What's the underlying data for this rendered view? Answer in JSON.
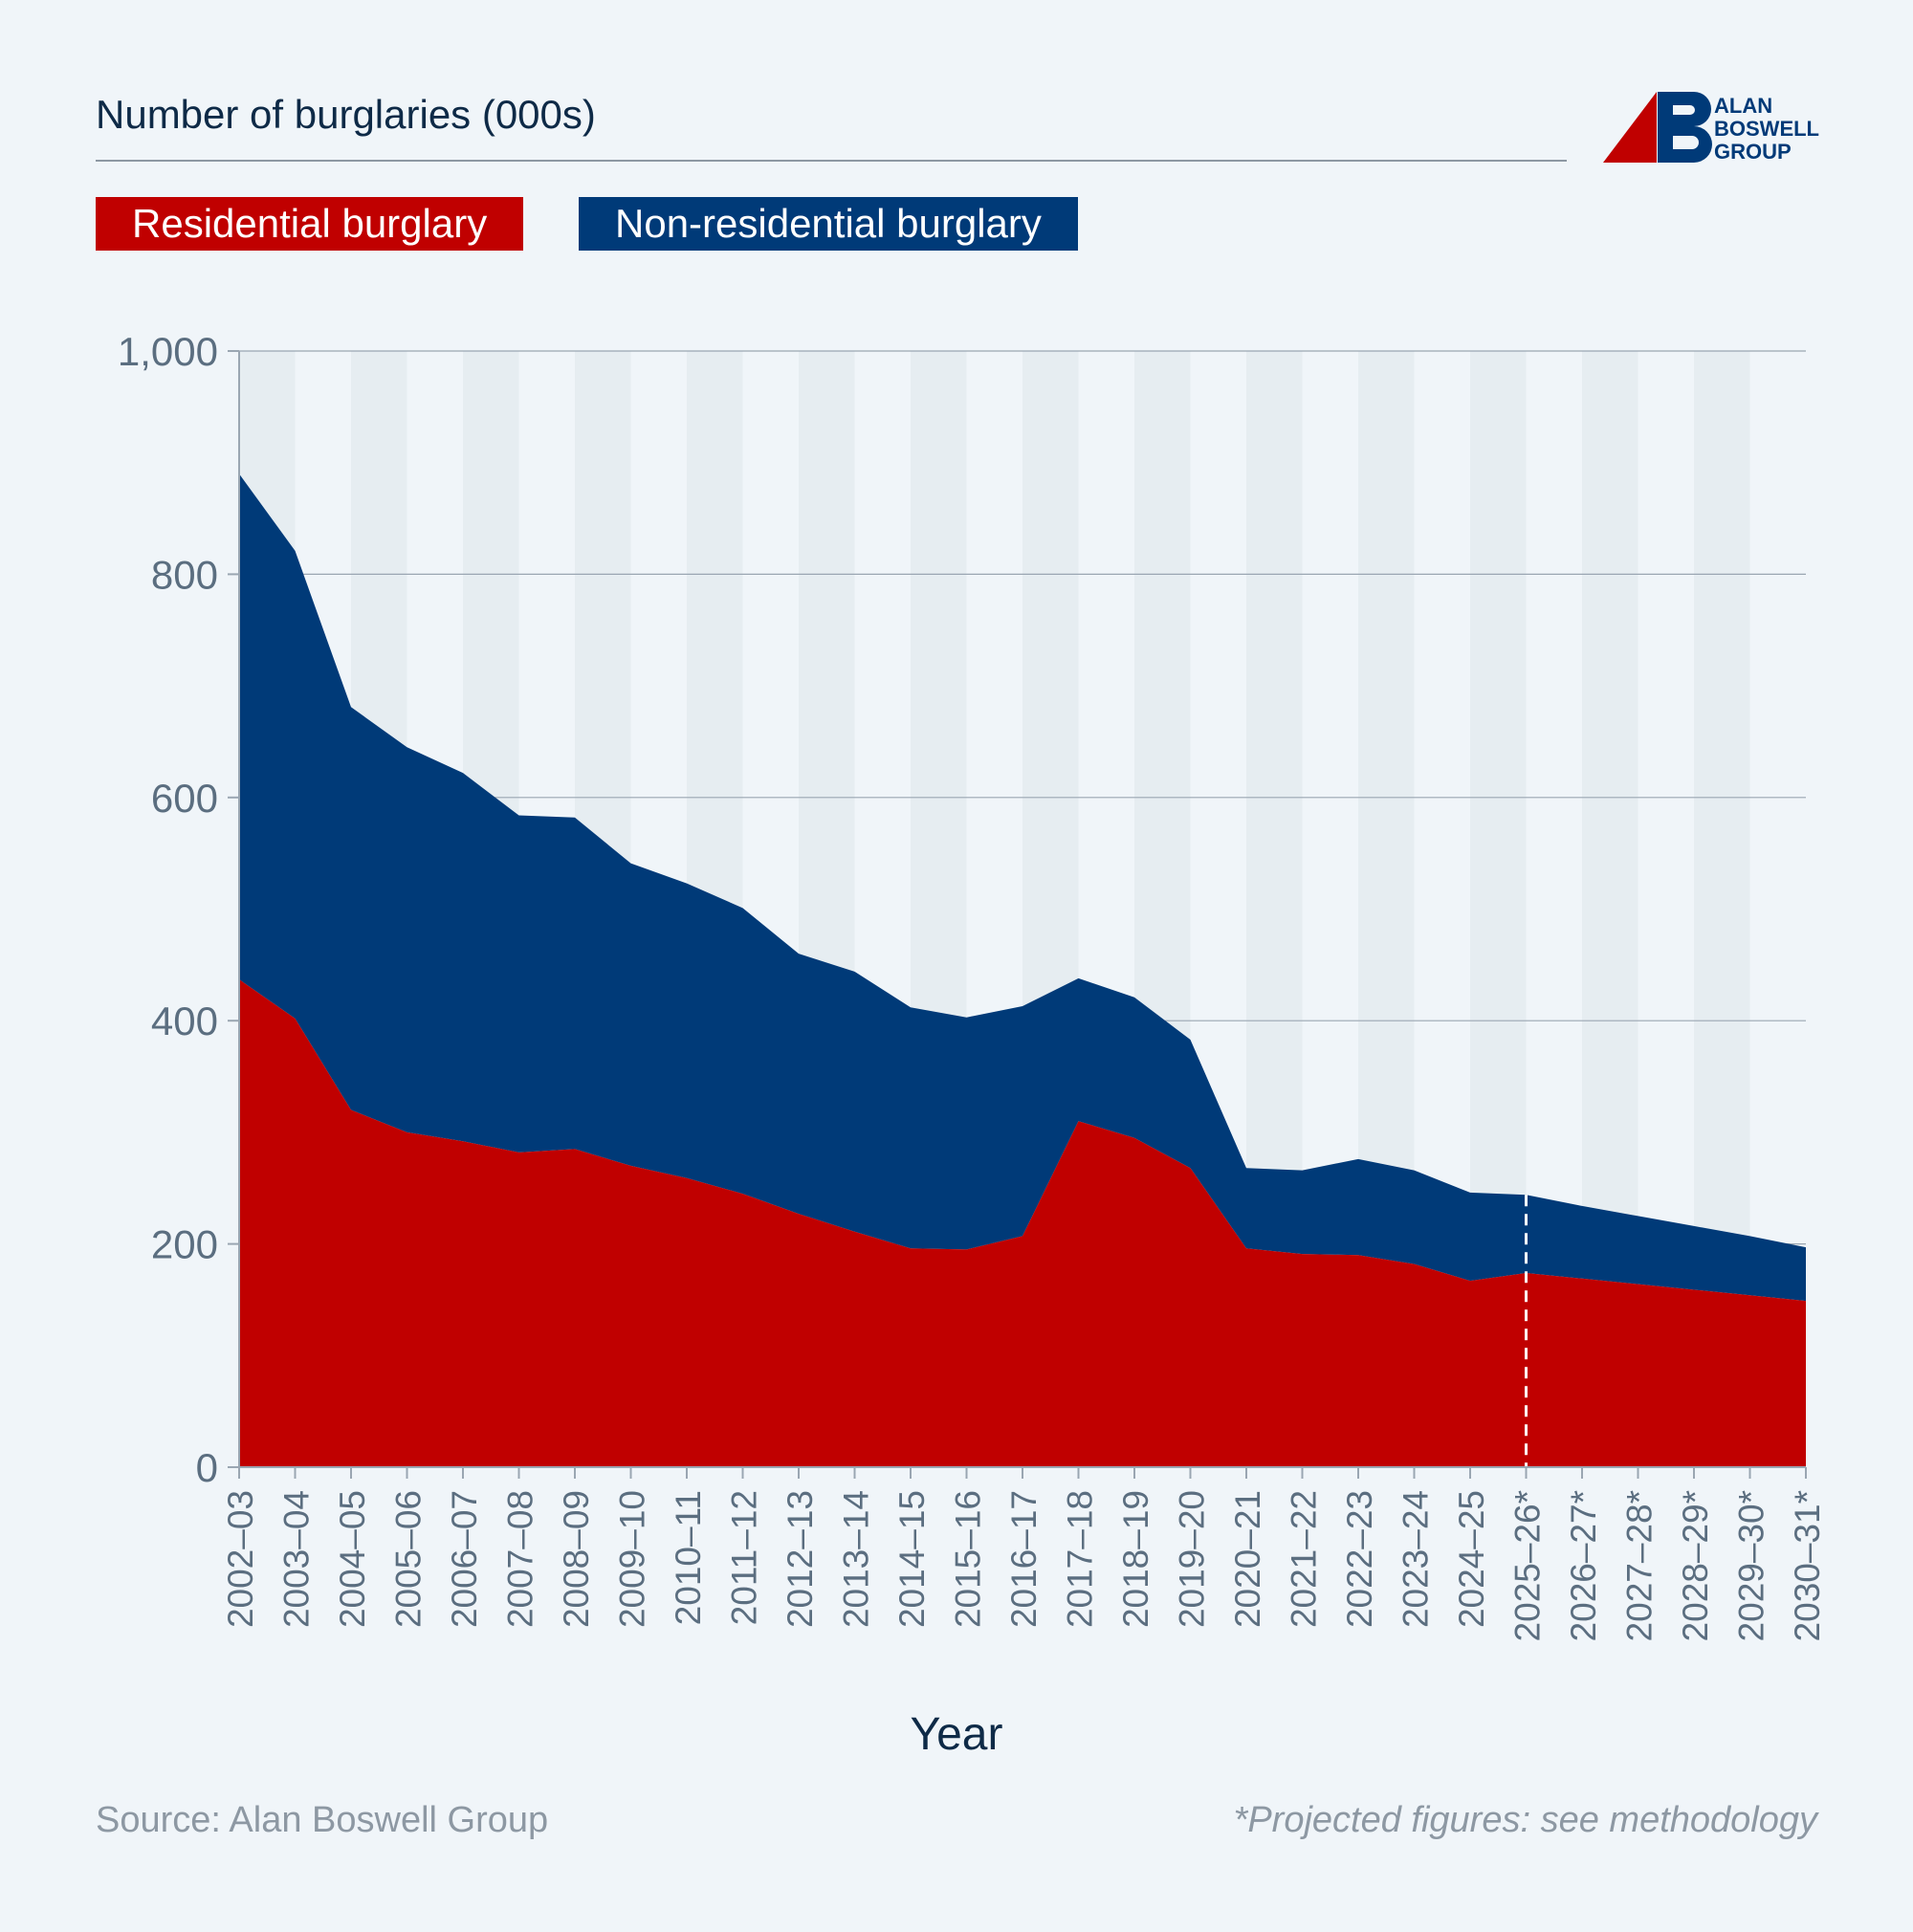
{
  "header": {
    "title": "Number of burglaries (000s)",
    "logo": {
      "lines": [
        "ALAN",
        "BOSWELL",
        "GROUP"
      ],
      "icon": "abg-logo-mark"
    }
  },
  "colors": {
    "residential": "#c00000",
    "non_residential": "#003a78",
    "background": "#f0f5f9",
    "stripe": "#e6edf1",
    "grid": "#9aa6b2",
    "axis_text": "#5b6e80",
    "title_text": "#0e2a47"
  },
  "footer": {
    "source": "Source: Alan Boswell Group",
    "note": "*Projected figures: see methodology"
  },
  "chart_data": {
    "type": "area",
    "stacked": true,
    "title": "Number of burglaries (000s)",
    "xlabel": "Year",
    "ylabel": "",
    "ylim": [
      0,
      1000
    ],
    "yticks": [
      0,
      200,
      400,
      600,
      800,
      1000
    ],
    "ytick_labels": [
      "0",
      "200",
      "400",
      "600",
      "800",
      "1,000"
    ],
    "grid": true,
    "legend_position": "top-left",
    "projection_start": "2025–26*",
    "categories": [
      "2002–03",
      "2003–04",
      "2004–05",
      "2005–06",
      "2006–07",
      "2007–08",
      "2008–09",
      "2009–10",
      "2010–11",
      "2011–12",
      "2012–13",
      "2013–14",
      "2014–15",
      "2015–16",
      "2016–17",
      "2017–18",
      "2018–19",
      "2019–20",
      "2020–21",
      "2021–22",
      "2022–23",
      "2023–24",
      "2024–25",
      "2025–26*",
      "2026–27*",
      "2027–28*",
      "2028–29*",
      "2029–30*",
      "2030–31*"
    ],
    "series": [
      {
        "name": "Residential burglary",
        "values": [
          437,
          402,
          320,
          300,
          292,
          282,
          285,
          270,
          259,
          245,
          227,
          211,
          196,
          195,
          207,
          310,
          295,
          268,
          196,
          191,
          190,
          182,
          167,
          174,
          169,
          164,
          159,
          154,
          149
        ]
      },
      {
        "name": "Non-residential burglary",
        "values": [
          453,
          419,
          361,
          345,
          330,
          302,
          297,
          271,
          264,
          256,
          233,
          233,
          216,
          208,
          206,
          128,
          126,
          115,
          72,
          75,
          86,
          84,
          79,
          70,
          65,
          61,
          57,
          53,
          48
        ]
      }
    ]
  }
}
